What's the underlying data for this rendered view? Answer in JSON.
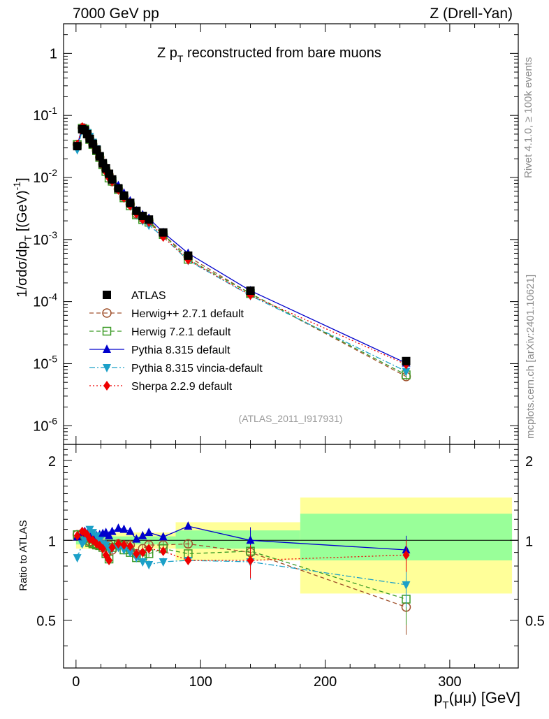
{
  "header": {
    "left": "7000 GeV pp",
    "right": "Z (Drell-Yan)"
  },
  "side_labels": {
    "rivet": "Rivet 4.1.0, ≥ 100k events",
    "mcplots": "mcplots.cern.ch [arXiv:2401.10621]"
  },
  "chart_data": {
    "type": "line",
    "title": "Z p_T reconstructed from bare muons",
    "title_main": "Z p",
    "title_sub": "T",
    "title_rest": " reconstructed from bare muons",
    "analysis_tag": "(ATLAS_2011_I917931)",
    "xlabel_main": "p",
    "xlabel_sub": "T",
    "xlabel_rest": "(μμ) [GeV]",
    "ylabel_main": "1/σdσ/dp",
    "ylabel_sub": "T",
    "ylabel_rest": " [(GeV)",
    "ylabel_sup": "-1",
    "ylabel_close": "]",
    "ratio_ylabel": "Ratio to ATLAS",
    "xlim": [
      -10,
      355
    ],
    "ylim_main": [
      5e-07,
      3
    ],
    "ylim_ratio": [
      0.33,
      2.3
    ],
    "x_ticks": [
      "0",
      "100",
      "200",
      "300"
    ],
    "y_ticks_main": [
      {
        "mant": "10",
        "exp": "-6"
      },
      {
        "mant": "10",
        "exp": "-5"
      },
      {
        "mant": "10",
        "exp": "-4"
      },
      {
        "mant": "10",
        "exp": "-3"
      },
      {
        "mant": "10",
        "exp": "-2"
      },
      {
        "mant": "10",
        "exp": "-1"
      },
      {
        "mant": "1",
        "exp": ""
      }
    ],
    "y_ticks_ratio": [
      "0.5",
      "1",
      "2"
    ],
    "x": [
      1,
      5,
      7,
      9,
      11,
      13.5,
      16.5,
      19,
      21.5,
      24,
      26.5,
      29,
      34,
      38.5,
      43.5,
      48.5,
      53.5,
      58.5,
      70,
      90,
      140,
      265
    ],
    "bands": [
      {
        "x0": 0,
        "x1": 80,
        "yellow": [
          0.93,
          1.07
        ],
        "green": [
          0.965,
          1.035
        ]
      },
      {
        "x0": 80,
        "x1": 180,
        "yellow": [
          0.84,
          1.17
        ],
        "green": [
          0.93,
          1.09
        ]
      },
      {
        "x0": 180,
        "x1": 350,
        "yellow": [
          0.63,
          1.45
        ],
        "green": [
          0.84,
          1.26
        ]
      }
    ],
    "series": [
      {
        "name": "ATLAS",
        "color": "#000000",
        "marker": "square",
        "dash": "",
        "values": [
          0.032,
          0.06,
          0.058,
          0.05,
          0.042,
          0.035,
          0.028,
          0.022,
          0.017,
          0.014,
          0.0115,
          0.0093,
          0.0067,
          0.0051,
          0.0039,
          0.0029,
          0.0024,
          0.0021,
          0.0013,
          0.00055,
          0.00015,
          1.1e-05
        ],
        "ratio": [
          1,
          1,
          1,
          1,
          1,
          1,
          1,
          1,
          1,
          1,
          1,
          1,
          1,
          1,
          1,
          1,
          1,
          1,
          1,
          1,
          1,
          1
        ]
      },
      {
        "name": "Herwig++ 2.7.1 default",
        "color": "#a0522d",
        "marker": "circle-open",
        "dash": "6,4",
        "values": [
          0.034,
          0.063,
          0.061,
          0.051,
          0.042,
          0.034,
          0.027,
          0.0212,
          0.0164,
          0.0133,
          0.011,
          0.0086,
          0.0065,
          0.0049,
          0.0037,
          0.0026,
          0.0022,
          0.002,
          0.0012,
          0.00053,
          0.000135,
          6.2e-06
        ],
        "ratio": [
          1.05,
          1.06,
          1.05,
          1.02,
          0.99,
          0.97,
          0.96,
          0.965,
          0.965,
          0.955,
          0.96,
          0.92,
          0.97,
          0.96,
          0.96,
          0.89,
          0.93,
          0.96,
          0.96,
          0.97,
          0.9,
          0.56
        ]
      },
      {
        "name": "Herwig 7.2.1 default",
        "color": "#3a9a25",
        "marker": "square-open",
        "dash": "6,4",
        "values": [
          0.034,
          0.062,
          0.06,
          0.051,
          0.041,
          0.034,
          0.027,
          0.021,
          0.016,
          0.0125,
          0.0098,
          0.0087,
          0.0064,
          0.0047,
          0.0035,
          0.0025,
          0.0021,
          0.0019,
          0.0012,
          0.00048,
          0.000135,
          6.6e-06
        ],
        "ratio": [
          1.05,
          1.04,
          1.04,
          1.02,
          0.98,
          0.97,
          0.96,
          0.955,
          0.94,
          0.89,
          0.85,
          0.94,
          0.96,
          0.92,
          0.9,
          0.86,
          0.87,
          0.89,
          0.93,
          0.89,
          0.91,
          0.6
        ]
      },
      {
        "name": "Pythia 8.315 default",
        "color": "#0000cc",
        "marker": "triangle-up",
        "dash": "",
        "values": [
          0.033,
          0.064,
          0.063,
          0.053,
          0.044,
          0.036,
          0.029,
          0.023,
          0.018,
          0.015,
          0.012,
          0.01,
          0.0074,
          0.0056,
          0.0042,
          0.0029,
          0.0025,
          0.0022,
          0.0013,
          0.0006,
          0.00015,
          1.02e-05
        ],
        "ratio": [
          1.03,
          1.07,
          1.08,
          1.06,
          1.05,
          1.03,
          1.04,
          1.05,
          1.06,
          1.07,
          1.04,
          1.08,
          1.11,
          1.1,
          1.08,
          1.01,
          1.04,
          1.07,
          1.03,
          1.13,
          1.0,
          0.92
        ]
      },
      {
        "name": "Pythia 8.315 vincia-default",
        "color": "#1ca0c8",
        "marker": "triangle-down",
        "dash": "8,3,2,3",
        "values": [
          0.028,
          0.058,
          0.058,
          0.053,
          0.046,
          0.037,
          0.029,
          0.022,
          0.017,
          0.0135,
          0.0107,
          0.0087,
          0.0063,
          0.0047,
          0.0035,
          0.0025,
          0.002,
          0.0017,
          0.0011,
          0.00046,
          0.000125,
          7.5e-06
        ],
        "ratio": [
          0.86,
          0.97,
          1.0,
          1.06,
          1.1,
          1.07,
          1.04,
          1.0,
          0.97,
          0.96,
          0.93,
          0.93,
          0.94,
          0.92,
          0.9,
          0.86,
          0.83,
          0.81,
          0.83,
          0.84,
          0.83,
          0.68
        ]
      },
      {
        "name": "Sherpa 2.2.9 default",
        "color": "#ee0000",
        "marker": "diamond",
        "dash": "2,3",
        "values": [
          0.034,
          0.065,
          0.062,
          0.052,
          0.042,
          0.034,
          0.027,
          0.021,
          0.016,
          0.0123,
          0.0097,
          0.0086,
          0.0063,
          0.0047,
          0.0035,
          0.0026,
          0.0021,
          0.0019,
          0.0011,
          0.00047,
          0.000127,
          9.7e-06
        ],
        "ratio": [
          1.04,
          1.08,
          1.07,
          1.05,
          1.01,
          1.0,
          0.97,
          0.955,
          0.93,
          0.88,
          0.84,
          0.94,
          0.97,
          0.96,
          0.95,
          0.89,
          0.9,
          0.93,
          0.91,
          0.84,
          0.84,
          0.88
        ]
      }
    ]
  }
}
